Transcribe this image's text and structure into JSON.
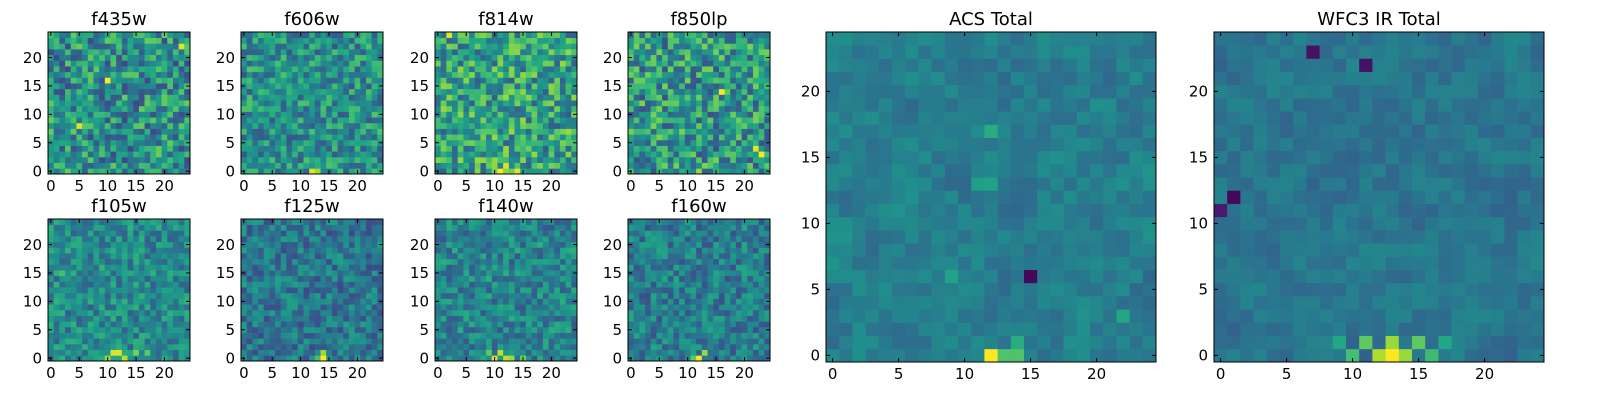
{
  "chart_data": {
    "type": "heatmap",
    "colormap": "viridis",
    "grid_size": [
      25,
      25
    ],
    "panels": [
      {
        "title": "f435w",
        "xticks": [
          "0",
          "5",
          "10",
          "15",
          "20"
        ],
        "yticks": [
          "0",
          "5",
          "10",
          "15",
          "20"
        ],
        "xlim": [
          0,
          25
        ],
        "ylim": [
          0,
          25
        ],
        "noise": 0.55,
        "bias": 0.22,
        "hotspots": [
          {
            "x": 5,
            "y": 8,
            "v": 0.95
          },
          {
            "x": 10,
            "y": 16,
            "v": 1.0
          },
          {
            "x": 23,
            "y": 22,
            "v": 0.95
          },
          {
            "x": 1,
            "y": 23,
            "v": 0.7
          }
        ]
      },
      {
        "title": "f606w",
        "xticks": [
          "0",
          "5",
          "10",
          "15",
          "20"
        ],
        "yticks": [
          "0",
          "5",
          "10",
          "15",
          "20"
        ],
        "xlim": [
          0,
          25
        ],
        "ylim": [
          0,
          25
        ],
        "noise": 0.45,
        "bias": 0.28,
        "hotspots": [
          {
            "x": 12,
            "y": 0,
            "v": 0.95
          },
          {
            "x": 13,
            "y": 0,
            "v": 0.85
          },
          {
            "x": 11,
            "y": 1,
            "v": 0.6
          }
        ]
      },
      {
        "title": "f814w",
        "xticks": [
          "0",
          "5",
          "10",
          "15",
          "20"
        ],
        "yticks": [
          "0",
          "5",
          "10",
          "15",
          "20"
        ],
        "xlim": [
          0,
          25
        ],
        "ylim": [
          0,
          25
        ],
        "noise": 0.55,
        "bias": 0.3,
        "hotspots": [
          {
            "x": 2,
            "y": 24,
            "v": 0.95
          },
          {
            "x": 11,
            "y": 0,
            "v": 1.0
          },
          {
            "x": 12,
            "y": 1,
            "v": 0.95
          },
          {
            "x": 14,
            "y": 0,
            "v": 0.95
          },
          {
            "x": 10,
            "y": 0,
            "v": 0.8
          }
        ]
      },
      {
        "title": "f850lp",
        "xticks": [
          "0",
          "5",
          "10",
          "15",
          "20"
        ],
        "yticks": [
          "0",
          "5",
          "10",
          "15",
          "20"
        ],
        "xlim": [
          0,
          25
        ],
        "ylim": [
          0,
          25
        ],
        "noise": 0.55,
        "bias": 0.25,
        "hotspots": [
          {
            "x": 16,
            "y": 14,
            "v": 1.0
          },
          {
            "x": 22,
            "y": 4,
            "v": 0.95
          },
          {
            "x": 23,
            "y": 3,
            "v": 1.0
          },
          {
            "x": 12,
            "y": 0,
            "v": 0.85
          }
        ]
      },
      {
        "title": "f105w",
        "xticks": [
          "0",
          "5",
          "10",
          "15",
          "20"
        ],
        "yticks": [
          "0",
          "5",
          "10",
          "15",
          "20"
        ],
        "xlim": [
          0,
          25
        ],
        "ylim": [
          0,
          25
        ],
        "noise": 0.35,
        "bias": 0.3,
        "hotspots": [
          {
            "x": 11,
            "y": 1,
            "v": 0.95
          },
          {
            "x": 12,
            "y": 1,
            "v": 0.95
          },
          {
            "x": 13,
            "y": 0,
            "v": 0.9
          },
          {
            "x": 10,
            "y": 0,
            "v": 0.85
          },
          {
            "x": 15,
            "y": 1,
            "v": 0.8
          },
          {
            "x": 17,
            "y": 1,
            "v": 0.75
          },
          {
            "x": 2,
            "y": 15,
            "v": 0.7
          }
        ]
      },
      {
        "title": "f125w",
        "xticks": [
          "0",
          "5",
          "10",
          "15",
          "20"
        ],
        "yticks": [
          "0",
          "5",
          "10",
          "15",
          "20"
        ],
        "xlim": [
          0,
          25
        ],
        "ylim": [
          0,
          25
        ],
        "noise": 0.35,
        "bias": 0.22,
        "hotspots": [
          {
            "x": 14,
            "y": 0,
            "v": 1.0
          },
          {
            "x": 14,
            "y": 1,
            "v": 0.85
          },
          {
            "x": 13,
            "y": 0,
            "v": 0.7
          }
        ]
      },
      {
        "title": "f140w",
        "xticks": [
          "0",
          "5",
          "10",
          "15",
          "20"
        ],
        "yticks": [
          "0",
          "5",
          "10",
          "15",
          "20"
        ],
        "xlim": [
          0,
          25
        ],
        "ylim": [
          0,
          25
        ],
        "noise": 0.35,
        "bias": 0.28,
        "hotspots": [
          {
            "x": 10,
            "y": 0,
            "v": 0.95
          },
          {
            "x": 11,
            "y": 1,
            "v": 0.9
          },
          {
            "x": 12,
            "y": 0,
            "v": 0.9
          },
          {
            "x": 13,
            "y": 0,
            "v": 0.85
          },
          {
            "x": 15,
            "y": 0,
            "v": 0.8
          },
          {
            "x": 9,
            "y": 1,
            "v": 0.75
          }
        ]
      },
      {
        "title": "f160w",
        "xticks": [
          "0",
          "5",
          "10",
          "15",
          "20"
        ],
        "yticks": [
          "0",
          "5",
          "10",
          "15",
          "20"
        ],
        "xlim": [
          0,
          25
        ],
        "ylim": [
          0,
          25
        ],
        "noise": 0.35,
        "bias": 0.25,
        "hotspots": [
          {
            "x": 12,
            "y": 0,
            "v": 1.0
          },
          {
            "x": 13,
            "y": 1,
            "v": 0.85
          },
          {
            "x": 11,
            "y": 0,
            "v": 0.75
          }
        ]
      },
      {
        "title": "ACS Total",
        "xticks": [
          "0",
          "5",
          "10",
          "15",
          "20"
        ],
        "yticks": [
          "0",
          "5",
          "10",
          "15",
          "20"
        ],
        "xlim": [
          0,
          25
        ],
        "ylim": [
          0,
          25
        ],
        "noise": 0.25,
        "bias": 0.3,
        "hotspots": [
          {
            "x": 12,
            "y": 0,
            "v": 1.0
          },
          {
            "x": 13,
            "y": 0,
            "v": 0.72
          },
          {
            "x": 14,
            "y": 0,
            "v": 0.72
          },
          {
            "x": 14,
            "y": 1,
            "v": 0.62
          },
          {
            "x": 12,
            "y": 17,
            "v": 0.62
          },
          {
            "x": 12,
            "y": 13,
            "v": 0.58
          },
          {
            "x": 11,
            "y": 13,
            "v": 0.56
          },
          {
            "x": 9,
            "y": 6,
            "v": 0.58
          },
          {
            "x": 22,
            "y": 3,
            "v": 0.6
          },
          {
            "x": 15,
            "y": 6,
            "v": 0.02
          }
        ]
      },
      {
        "title": "WFC3 IR Total",
        "xticks": [
          "0",
          "5",
          "10",
          "15",
          "20"
        ],
        "yticks": [
          "0",
          "5",
          "10",
          "15",
          "20"
        ],
        "xlim": [
          0,
          25
        ],
        "ylim": [
          0,
          25
        ],
        "noise": 0.22,
        "bias": 0.28,
        "hotspots": [
          {
            "x": 13,
            "y": 0,
            "v": 1.0
          },
          {
            "x": 12,
            "y": 0,
            "v": 0.88
          },
          {
            "x": 14,
            "y": 0,
            "v": 0.85
          },
          {
            "x": 11,
            "y": 1,
            "v": 0.75
          },
          {
            "x": 13,
            "y": 1,
            "v": 0.85
          },
          {
            "x": 15,
            "y": 1,
            "v": 0.75
          },
          {
            "x": 10,
            "y": 0,
            "v": 0.7
          },
          {
            "x": 16,
            "y": 0,
            "v": 0.68
          },
          {
            "x": 9,
            "y": 1,
            "v": 0.6
          },
          {
            "x": 17,
            "y": 1,
            "v": 0.6
          },
          {
            "x": 1,
            "y": 12,
            "v": 0.02
          },
          {
            "x": 0,
            "y": 11,
            "v": 0.08
          },
          {
            "x": 7,
            "y": 23,
            "v": 0.05
          },
          {
            "x": 11,
            "y": 22,
            "v": 0.05
          }
        ]
      }
    ]
  }
}
